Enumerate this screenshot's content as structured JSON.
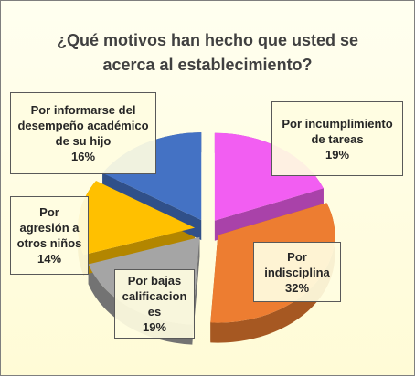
{
  "chart_data": {
    "type": "pie",
    "title": "¿Qué motivos han hecho que usted se acerca al  establecimiento?",
    "categories": [
      "Por incumplimiento de tareas",
      "Por indisciplina",
      "Por bajas calificaciones",
      "Por agresión a otros niños",
      "Por informarse del desempeño académico de su hijo"
    ],
    "values": [
      19,
      32,
      19,
      14,
      16
    ],
    "value_labels": [
      "19%",
      "32%",
      "19%",
      "14%",
      "16%"
    ],
    "colors": [
      "#f25ef2",
      "#ed7d31",
      "#a5a5a5",
      "#ffc000",
      "#4472c4"
    ]
  }
}
